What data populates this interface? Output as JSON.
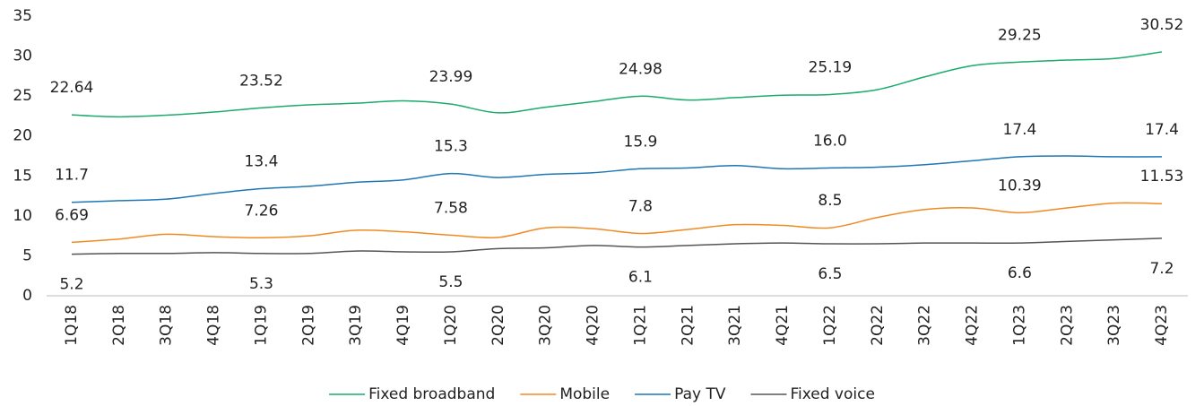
{
  "chart_data": {
    "type": "line",
    "categories": [
      "1Q18",
      "2Q18",
      "3Q18",
      "4Q18",
      "1Q19",
      "2Q19",
      "3Q19",
      "4Q19",
      "1Q20",
      "2Q20",
      "3Q20",
      "4Q20",
      "1Q21",
      "2Q21",
      "3Q21",
      "4Q21",
      "1Q22",
      "2Q22",
      "3Q22",
      "4Q22",
      "1Q23",
      "2Q23",
      "3Q23",
      "4Q23"
    ],
    "series": [
      {
        "name": "Fixed broadband",
        "color": "#1aab6d",
        "values": [
          22.64,
          22.4,
          22.6,
          23.0,
          23.52,
          23.9,
          24.1,
          24.4,
          23.99,
          22.9,
          23.6,
          24.3,
          24.98,
          24.5,
          24.8,
          25.1,
          25.19,
          25.8,
          27.4,
          28.8,
          29.25,
          29.5,
          29.7,
          30.52
        ],
        "value_labels": [
          "22.64",
          null,
          null,
          null,
          "23.52",
          null,
          null,
          null,
          "23.99",
          null,
          null,
          null,
          "24.98",
          null,
          null,
          null,
          "25.19",
          null,
          null,
          null,
          "29.25",
          null,
          null,
          "30.52"
        ]
      },
      {
        "name": "Mobile",
        "color": "#f08a24",
        "values": [
          6.69,
          7.1,
          7.7,
          7.4,
          7.26,
          7.5,
          8.2,
          8.0,
          7.58,
          7.3,
          8.5,
          8.4,
          7.8,
          8.3,
          8.9,
          8.8,
          8.5,
          9.8,
          10.8,
          11.0,
          10.39,
          11.0,
          11.6,
          11.53
        ],
        "value_labels": [
          "6.69",
          null,
          null,
          null,
          "7.26",
          null,
          null,
          null,
          "7.58",
          null,
          null,
          null,
          "7.8",
          null,
          null,
          null,
          "8.5",
          null,
          null,
          null,
          "10.39",
          null,
          null,
          "11.53"
        ]
      },
      {
        "name": "Pay TV",
        "color": "#1f77b4",
        "values": [
          11.7,
          11.9,
          12.1,
          12.8,
          13.4,
          13.7,
          14.2,
          14.5,
          15.3,
          14.8,
          15.2,
          15.4,
          15.9,
          16.0,
          16.3,
          15.9,
          16.0,
          16.1,
          16.4,
          16.9,
          17.4,
          17.5,
          17.4,
          17.4
        ],
        "value_labels": [
          "11.7",
          null,
          null,
          null,
          "13.4",
          null,
          null,
          null,
          "15.3",
          null,
          null,
          null,
          "15.9",
          null,
          null,
          null,
          "16.0",
          null,
          null,
          null,
          "17.4",
          null,
          null,
          "17.4"
        ]
      },
      {
        "name": "Fixed voice",
        "color": "#555555",
        "values": [
          5.2,
          5.3,
          5.3,
          5.4,
          5.3,
          5.3,
          5.6,
          5.5,
          5.5,
          5.9,
          6.0,
          6.3,
          6.1,
          6.3,
          6.5,
          6.6,
          6.5,
          6.5,
          6.6,
          6.6,
          6.6,
          6.8,
          7.0,
          7.2
        ],
        "value_labels": [
          "5.2",
          null,
          null,
          null,
          "5.3",
          null,
          null,
          null,
          "5.5",
          null,
          null,
          null,
          "6.1",
          null,
          null,
          null,
          "6.5",
          null,
          null,
          null,
          "6.6",
          null,
          null,
          "7.2"
        ]
      }
    ],
    "ylim": [
      0,
      35
    ],
    "yticks": [
      0,
      5,
      10,
      15,
      20,
      25,
      30,
      35
    ],
    "grid": false,
    "legend": "bottom"
  }
}
